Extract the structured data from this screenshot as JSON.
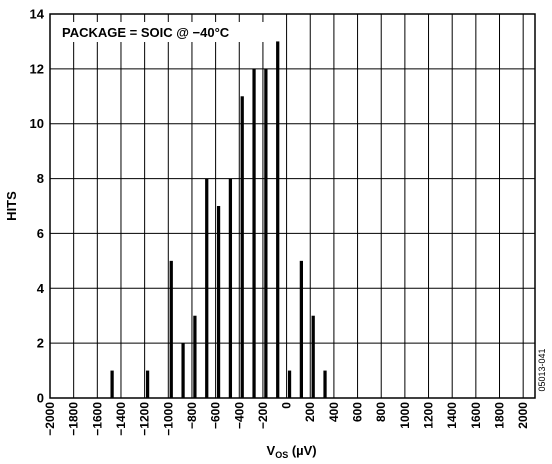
{
  "chart_data": {
    "type": "bar",
    "annotation": "PACKAGE = SOIC @ −40°C",
    "ylabel": "HITS",
    "xlabel_main": "V",
    "xlabel_sub": "OS",
    "xlabel_unit": " (µV)",
    "figure_id": "05013-041",
    "xlim": [
      -2000,
      2100
    ],
    "ylim": [
      0,
      14
    ],
    "x_ticks": [
      -2000,
      -1800,
      -1600,
      -1400,
      -1200,
      -1000,
      -800,
      -600,
      -400,
      -200,
      0,
      200,
      400,
      600,
      800,
      1000,
      1200,
      1400,
      1600,
      1800,
      2000
    ],
    "x_tick_labels": [
      "−2000",
      "−1800",
      "−1600",
      "−1400",
      "−1200",
      "−1000",
      "−800",
      "−600",
      "−400",
      "−200",
      "0",
      "200",
      "400",
      "600",
      "800",
      "1000",
      "1200",
      "1400",
      "1600",
      "1800",
      "2000"
    ],
    "y_ticks": [
      0,
      2,
      4,
      6,
      8,
      10,
      12,
      14
    ],
    "bin_width": 50,
    "grid": true,
    "bars": [
      {
        "x": -1475,
        "value": 1
      },
      {
        "x": -1175,
        "value": 1
      },
      {
        "x": -975,
        "value": 5
      },
      {
        "x": -875,
        "value": 2
      },
      {
        "x": -775,
        "value": 3
      },
      {
        "x": -675,
        "value": 8
      },
      {
        "x": -575,
        "value": 7
      },
      {
        "x": -475,
        "value": 8
      },
      {
        "x": -375,
        "value": 11
      },
      {
        "x": -275,
        "value": 12
      },
      {
        "x": -175,
        "value": 12
      },
      {
        "x": -75,
        "value": 13
      },
      {
        "x": 25,
        "value": 1
      },
      {
        "x": 125,
        "value": 5
      },
      {
        "x": 225,
        "value": 3
      },
      {
        "x": 325,
        "value": 1
      }
    ]
  }
}
